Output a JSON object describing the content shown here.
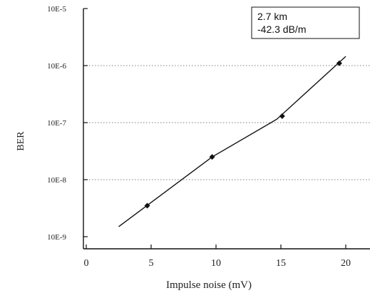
{
  "chart_data": {
    "type": "line",
    "title": "",
    "xlabel": "Impulse noise (mV)",
    "ylabel": "BER",
    "x_ticks": [
      "0",
      "5",
      "10",
      "15",
      "20"
    ],
    "y_ticks": [
      "10E-9",
      "10E-8",
      "10E-7",
      "10E-6",
      "10E-5"
    ],
    "y_scale": "log",
    "xlim": [
      0,
      22
    ],
    "ylim": [
      1e-09,
      1e-05
    ],
    "grid": "horizontal dotted",
    "legend_position": "top-right",
    "annotation": [
      "2.7 km",
      "-42.3 dB/m"
    ],
    "series": [
      {
        "x": [
          4.7,
          9.7,
          15.1,
          19.5
        ],
        "y": [
          3.5e-09,
          2.5e-08,
          1.3e-07,
          1.1e-06
        ]
      }
    ],
    "fit_line": {
      "x": [
        2.5,
        9.7,
        14.7,
        20.0
      ],
      "y": [
        1.5e-09,
        2.5e-08,
        1.15e-07,
        1.45e-06
      ]
    },
    "line_color": "#111111"
  }
}
